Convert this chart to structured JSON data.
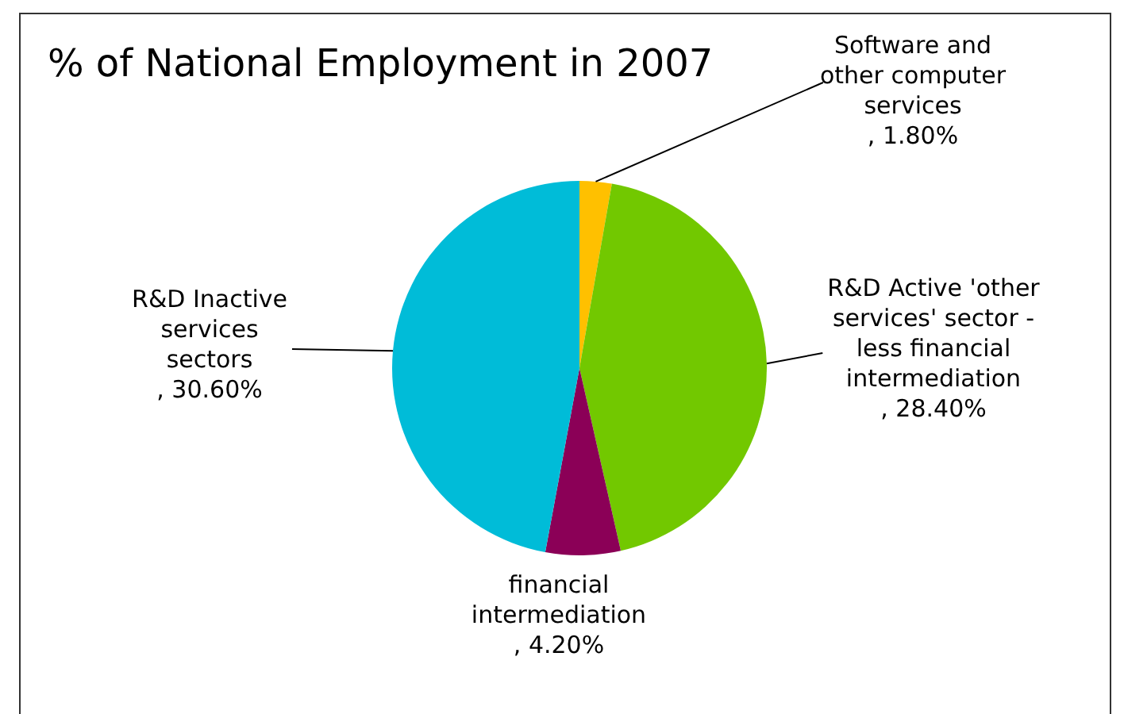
{
  "chart_data": {
    "type": "pie",
    "title": "% of National Employment in 2007",
    "categories": [
      "Software and other computer services",
      "R&D Active 'other services' sector - less financial intermediation",
      "financial intermediation",
      "R&D Inactive services sectors"
    ],
    "values": [
      1.8,
      28.4,
      4.2,
      30.6
    ],
    "value_labels": [
      ", 1.80%",
      ", 28.40%",
      ", 4.20%",
      ", 30.60%"
    ],
    "colors": [
      "#ffc000",
      "#72c800",
      "#8b0057",
      "#00bcd8"
    ],
    "legend": false
  }
}
